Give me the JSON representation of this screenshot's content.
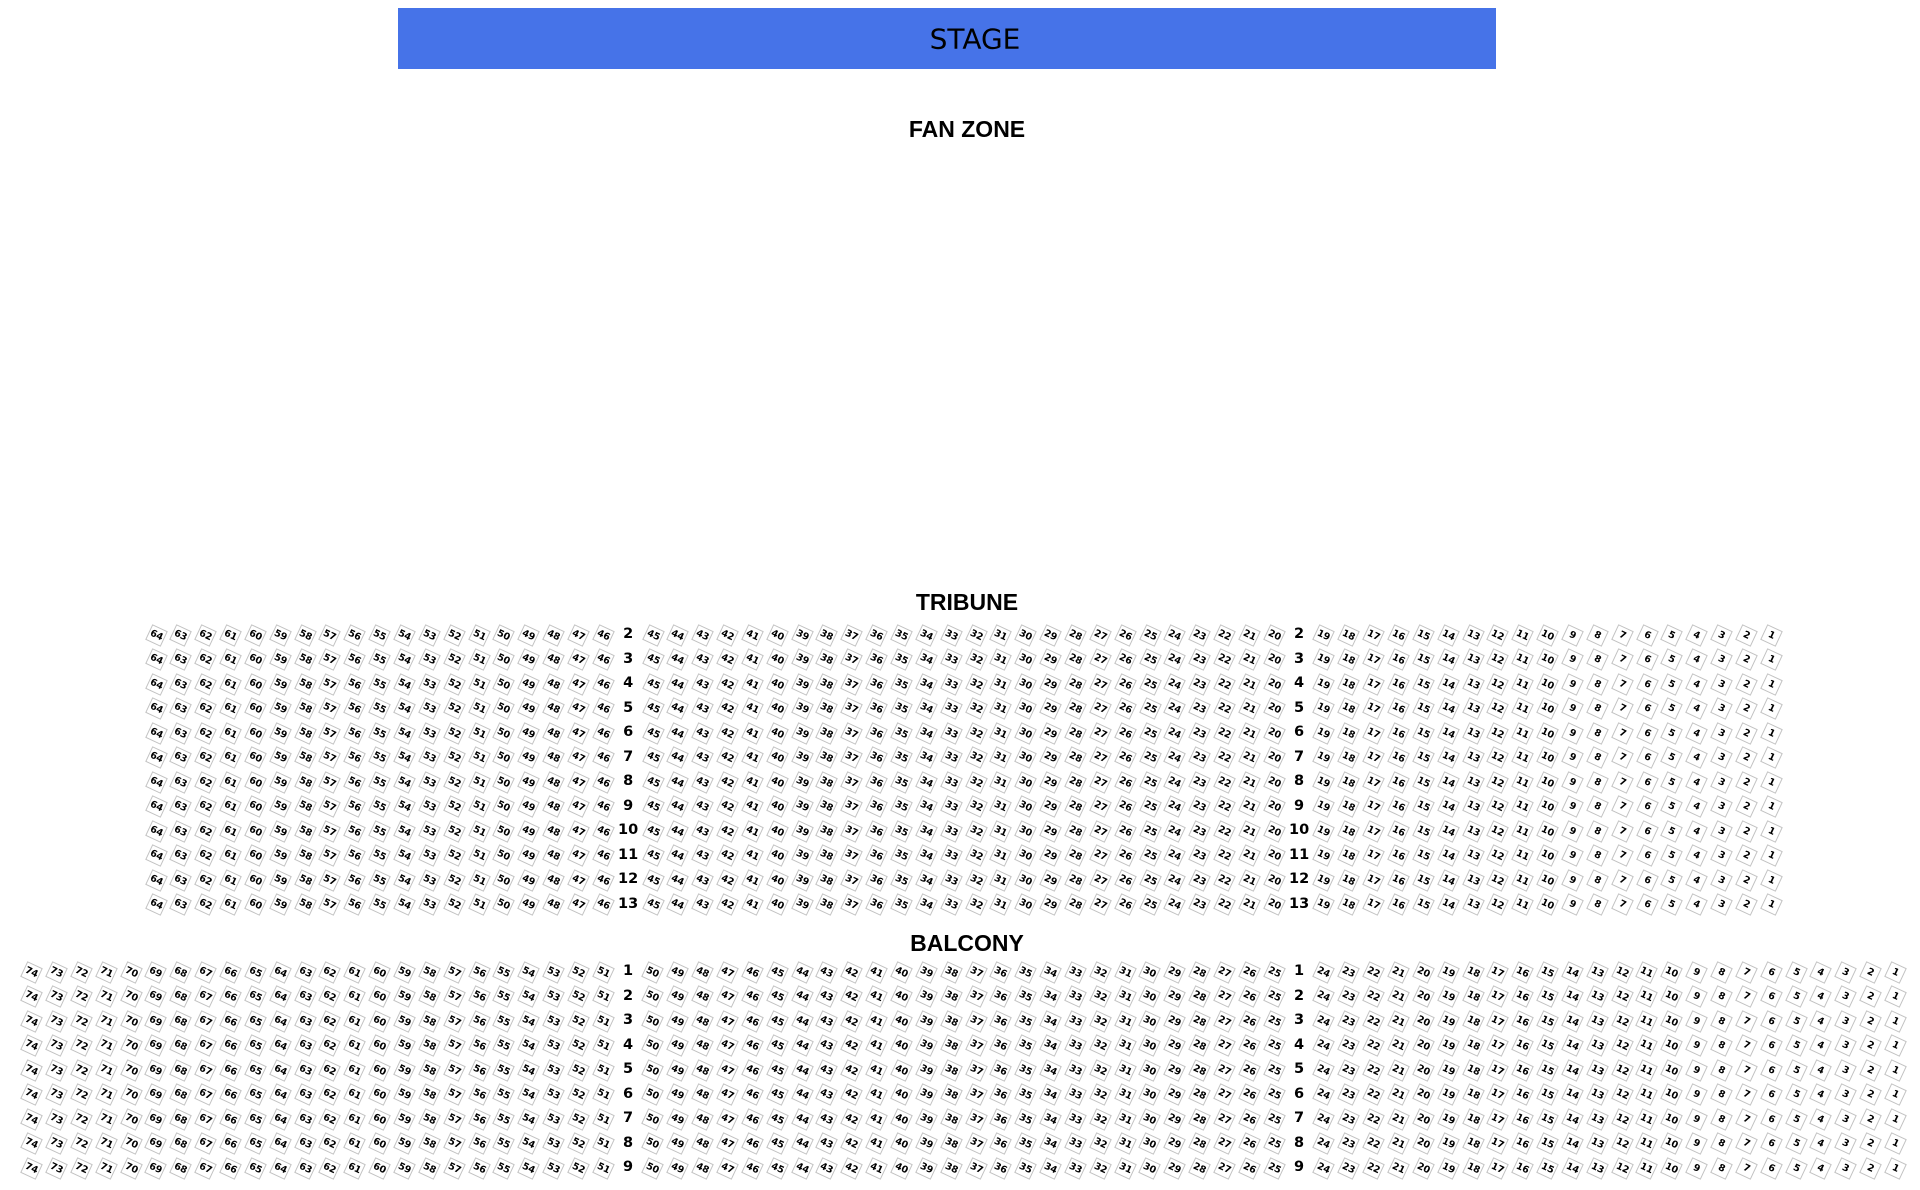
{
  "stage": {
    "label": "STAGE",
    "background": "#4673e8",
    "text_color": "#000000"
  },
  "fan_zone": {
    "label": "FAN ZONE"
  },
  "tribune": {
    "label": "TRIBUNE",
    "row_numbers": [
      2,
      3,
      4,
      5,
      6,
      7,
      8,
      9,
      10,
      11,
      12,
      13
    ],
    "seat_segments": [
      {
        "from": 64,
        "to": 46
      },
      {
        "from": 45,
        "to": 20
      },
      {
        "from": 19,
        "to": 1
      }
    ]
  },
  "balcony": {
    "label": "BALCONY",
    "row_numbers": [
      1,
      2,
      3,
      4,
      5,
      6,
      7,
      8,
      9
    ],
    "seat_segments": [
      {
        "from": 74,
        "to": 51
      },
      {
        "from": 50,
        "to": 25
      },
      {
        "from": 24,
        "to": 1
      }
    ]
  },
  "seat_style": {
    "border_color": "#c2c2c2",
    "fill_color": "#ffffff",
    "number_color": "#000000",
    "rotation_deg": 25
  }
}
